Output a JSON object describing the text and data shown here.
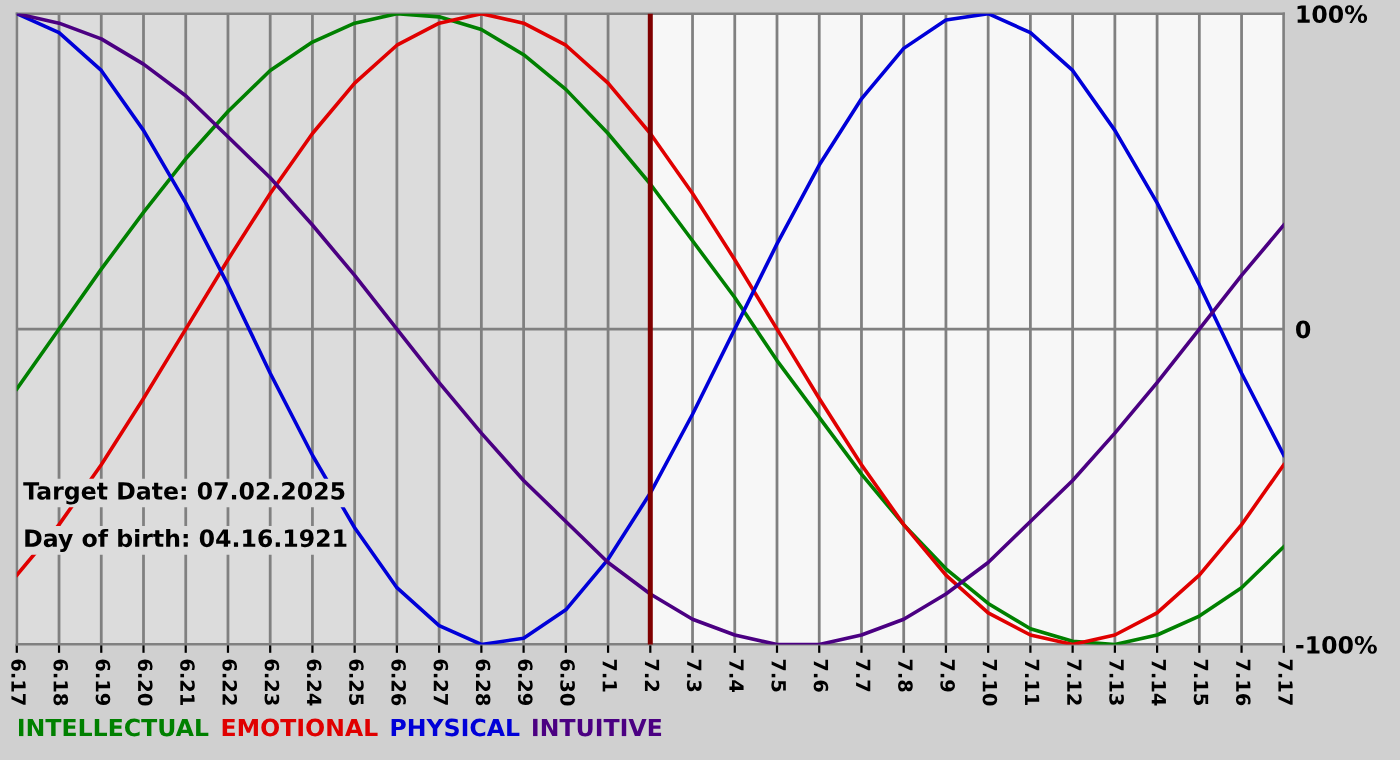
{
  "chart_data": {
    "type": "line",
    "categories": [
      "6.17",
      "6.18",
      "6.19",
      "6.20",
      "6.21",
      "6.22",
      "6.23",
      "6.24",
      "6.25",
      "6.26",
      "6.27",
      "6.28",
      "6.29",
      "6.30",
      "7.1",
      "7.2",
      "7.3",
      "7.4",
      "7.5",
      "7.6",
      "7.7",
      "7.8",
      "7.9",
      "7.10",
      "7.11",
      "7.12",
      "7.13",
      "7.14",
      "7.15",
      "7.16",
      "7.17"
    ],
    "series": [
      {
        "name": "INTELLECTUAL",
        "color": "#008000",
        "values": [
          -19,
          0,
          19,
          37,
          54,
          69,
          82,
          91,
          97,
          100,
          99,
          95,
          87,
          76,
          62,
          46,
          28,
          10,
          -10,
          -28,
          -46,
          -62,
          -76,
          -87,
          -95,
          -99,
          -100,
          -97,
          -91,
          -82,
          -69
        ]
      },
      {
        "name": "EMOTIONAL",
        "color": "#e00000",
        "values": [
          -78,
          -62,
          -43,
          -22,
          0,
          22,
          43,
          62,
          78,
          90,
          97,
          100,
          97,
          90,
          78,
          62,
          43,
          22,
          0,
          -22,
          -43,
          -62,
          -78,
          -90,
          -97,
          -100,
          -97,
          -90,
          -78,
          -62,
          -43
        ]
      },
      {
        "name": "PHYSICAL",
        "color": "#0000d8",
        "values": [
          100,
          94,
          82,
          63,
          40,
          14,
          -14,
          -40,
          -63,
          -82,
          -94,
          -100,
          -98,
          -89,
          -73,
          -52,
          -27,
          0,
          27,
          52,
          73,
          89,
          98,
          100,
          94,
          82,
          63,
          40,
          14,
          -14,
          -40
        ]
      },
      {
        "name": "INTUITIVE",
        "color": "#4b0082",
        "values": [
          100,
          97,
          92,
          84,
          74,
          61,
          48,
          33,
          17,
          0,
          -17,
          -33,
          -48,
          -61,
          -74,
          -84,
          -92,
          -97,
          -100,
          -100,
          -97,
          -92,
          -84,
          -74,
          -61,
          -48,
          -33,
          -17,
          0,
          17,
          33
        ]
      }
    ],
    "ylim": [
      -100,
      100
    ],
    "yticks": [
      {
        "value": 100,
        "label": "100%"
      },
      0,
      {
        "value": -100,
        "label": "-100%"
      }
    ],
    "grid": true,
    "legend": "bottom left",
    "marker": "none",
    "line_style": "solid",
    "ref_lines": [
      {
        "axis": "x",
        "value": "7.2",
        "color": "#800000",
        "line_style": "solid"
      }
    ],
    "bands": [
      {
        "axis": "x",
        "from": "6.17",
        "to": "7.2",
        "color": "#dcdcdc"
      }
    ],
    "annotations": [
      "Target Date: 07.02.2025",
      "Day of birth: 04.16.1921"
    ]
  }
}
